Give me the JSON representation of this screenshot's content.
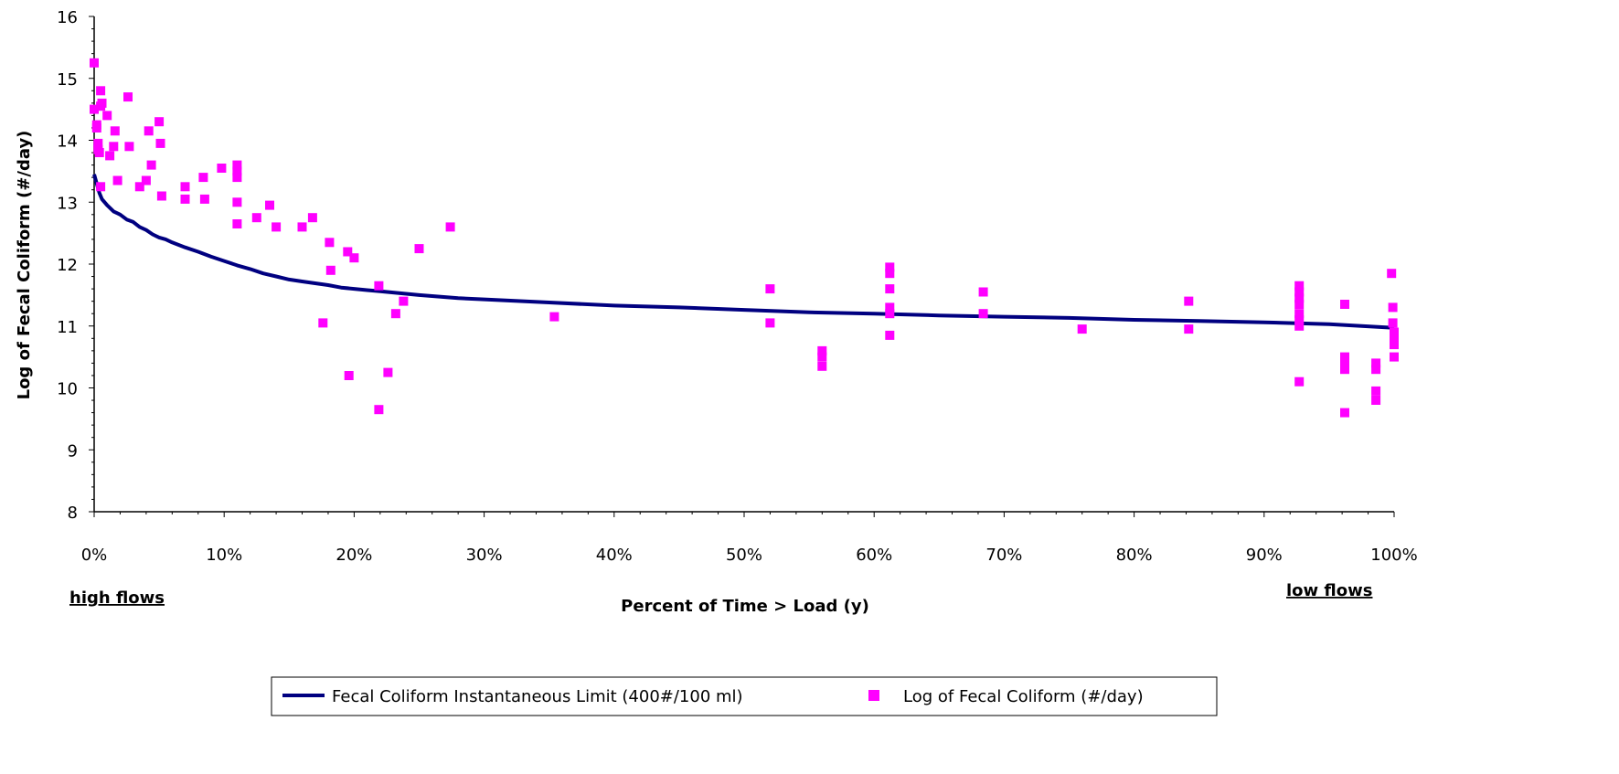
{
  "chart_data": {
    "type": "scatter",
    "xlabel": "Percent of Time > Load (y)",
    "ylabel": "Log of Fecal Coliform (#/day)",
    "xlim": [
      0,
      1
    ],
    "ylim": [
      8,
      16
    ],
    "x_ticks": [
      "0%",
      "10%",
      "20%",
      "30%",
      "40%",
      "50%",
      "60%",
      "70%",
      "80%",
      "90%",
      "100%"
    ],
    "y_ticks": [
      "8",
      "9",
      "10",
      "11",
      "12",
      "13",
      "14",
      "15",
      "16"
    ],
    "low_end_label": "high flows",
    "high_end_label": "low flows",
    "legend_placement": "bottom",
    "grid": false,
    "series": [
      {
        "name": "Fecal Coliform Instantaneous Limit (400#/100 ml)",
        "kind": "line",
        "color": "#000080",
        "x": [
          0,
          0.002,
          0.004,
          0.006,
          0.01,
          0.015,
          0.02,
          0.025,
          0.03,
          0.035,
          0.04,
          0.045,
          0.05,
          0.055,
          0.06,
          0.07,
          0.08,
          0.09,
          0.1,
          0.11,
          0.12,
          0.13,
          0.14,
          0.15,
          0.16,
          0.17,
          0.18,
          0.19,
          0.2,
          0.21,
          0.22,
          0.25,
          0.28,
          0.3,
          0.35,
          0.4,
          0.45,
          0.5,
          0.55,
          0.6,
          0.65,
          0.7,
          0.75,
          0.8,
          0.85,
          0.9,
          0.95,
          1.0
        ],
        "y": [
          13.45,
          13.3,
          13.15,
          13.05,
          12.95,
          12.85,
          12.8,
          12.72,
          12.68,
          12.6,
          12.55,
          12.48,
          12.43,
          12.4,
          12.35,
          12.27,
          12.2,
          12.12,
          12.05,
          11.98,
          11.92,
          11.85,
          11.8,
          11.75,
          11.72,
          11.69,
          11.66,
          11.62,
          11.6,
          11.58,
          11.56,
          11.5,
          11.45,
          11.43,
          11.38,
          11.33,
          11.3,
          11.26,
          11.22,
          11.2,
          11.17,
          11.15,
          11.13,
          11.1,
          11.08,
          11.06,
          11.03,
          10.97
        ]
      },
      {
        "name": "Log of Fecal Coliform (#/day)",
        "kind": "scatter",
        "color": "#ff00ff",
        "points": [
          [
            0.0,
            15.25
          ],
          [
            0.0,
            14.5
          ],
          [
            0.002,
            14.25
          ],
          [
            0.002,
            14.2
          ],
          [
            0.003,
            13.95
          ],
          [
            0.003,
            13.85
          ],
          [
            0.004,
            13.8
          ],
          [
            0.005,
            14.55
          ],
          [
            0.006,
            14.6
          ],
          [
            0.005,
            13.25
          ],
          [
            0.005,
            14.8
          ],
          [
            0.01,
            14.4
          ],
          [
            0.012,
            13.75
          ],
          [
            0.015,
            13.9
          ],
          [
            0.016,
            14.15
          ],
          [
            0.018,
            13.35
          ],
          [
            0.026,
            14.7
          ],
          [
            0.027,
            13.9
          ],
          [
            0.035,
            13.25
          ],
          [
            0.04,
            13.35
          ],
          [
            0.042,
            14.15
          ],
          [
            0.044,
            13.6
          ],
          [
            0.05,
            14.3
          ],
          [
            0.051,
            13.95
          ],
          [
            0.052,
            13.1
          ],
          [
            0.07,
            13.25
          ],
          [
            0.07,
            13.05
          ],
          [
            0.084,
            13.4
          ],
          [
            0.085,
            13.05
          ],
          [
            0.098,
            13.55
          ],
          [
            0.11,
            13.6
          ],
          [
            0.11,
            13.5
          ],
          [
            0.11,
            13.4
          ],
          [
            0.11,
            13.0
          ],
          [
            0.11,
            12.65
          ],
          [
            0.125,
            12.75
          ],
          [
            0.135,
            12.95
          ],
          [
            0.14,
            12.6
          ],
          [
            0.16,
            12.6
          ],
          [
            0.168,
            12.75
          ],
          [
            0.176,
            11.05
          ],
          [
            0.181,
            12.35
          ],
          [
            0.182,
            11.9
          ],
          [
            0.195,
            12.2
          ],
          [
            0.196,
            10.2
          ],
          [
            0.2,
            12.1
          ],
          [
            0.219,
            11.65
          ],
          [
            0.219,
            9.65
          ],
          [
            0.226,
            10.25
          ],
          [
            0.232,
            11.2
          ],
          [
            0.238,
            11.4
          ],
          [
            0.25,
            12.25
          ],
          [
            0.274,
            12.6
          ],
          [
            0.354,
            11.15
          ],
          [
            0.52,
            11.6
          ],
          [
            0.52,
            11.05
          ],
          [
            0.56,
            10.6
          ],
          [
            0.56,
            10.5
          ],
          [
            0.56,
            10.35
          ],
          [
            0.612,
            11.95
          ],
          [
            0.612,
            11.85
          ],
          [
            0.612,
            11.6
          ],
          [
            0.612,
            11.3
          ],
          [
            0.612,
            11.2
          ],
          [
            0.612,
            10.85
          ],
          [
            0.684,
            11.55
          ],
          [
            0.684,
            11.2
          ],
          [
            0.76,
            10.95
          ],
          [
            0.842,
            11.4
          ],
          [
            0.842,
            10.95
          ],
          [
            0.927,
            11.65
          ],
          [
            0.927,
            11.55
          ],
          [
            0.927,
            11.45
          ],
          [
            0.927,
            11.35
          ],
          [
            0.927,
            11.2
          ],
          [
            0.927,
            11.1
          ],
          [
            0.927,
            11.0
          ],
          [
            0.927,
            10.1
          ],
          [
            0.962,
            11.35
          ],
          [
            0.962,
            10.5
          ],
          [
            0.962,
            10.4
          ],
          [
            0.962,
            10.3
          ],
          [
            0.962,
            9.6
          ],
          [
            0.986,
            10.4
          ],
          [
            0.986,
            10.3
          ],
          [
            0.986,
            9.95
          ],
          [
            0.986,
            9.8
          ],
          [
            0.998,
            11.85
          ],
          [
            0.999,
            11.3
          ],
          [
            0.999,
            11.05
          ],
          [
            1.0,
            10.9
          ],
          [
            1.0,
            10.8
          ],
          [
            1.0,
            10.7
          ],
          [
            1.0,
            10.5
          ]
        ]
      }
    ]
  }
}
